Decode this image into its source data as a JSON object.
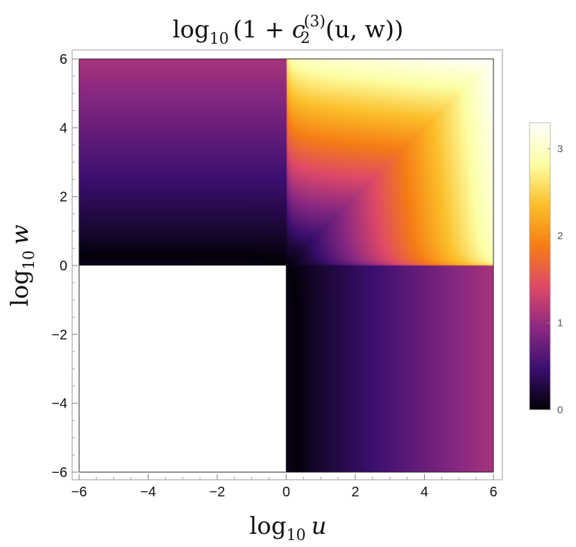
{
  "chart_data": {
    "type": "heatmap",
    "title_parts": {
      "log": "log",
      "log_sub": "10",
      "open": "(1 + ",
      "c": "c",
      "c_sub": "2",
      "c_sup": "(3)",
      "args": "(u, w))"
    },
    "xlabel_parts": {
      "log": "log",
      "log_sub": "10",
      "var": "u"
    },
    "ylabel_parts": {
      "log": "log",
      "log_sub": "10",
      "var": "w"
    },
    "xlim": [
      -6,
      6
    ],
    "ylim": [
      -6,
      6
    ],
    "x_ticks": [
      "−6",
      "−4",
      "−2",
      "0",
      "2",
      "4",
      "6"
    ],
    "y_ticks": [
      "−6",
      "−4",
      "−2",
      "0",
      "2",
      "4",
      "6"
    ],
    "x_tick_values": [
      -6,
      -4,
      -2,
      0,
      2,
      4,
      6
    ],
    "y_tick_values": [
      -6,
      -4,
      -2,
      0,
      2,
      4,
      6
    ],
    "colorbar": {
      "range": [
        0,
        3.3
      ],
      "ticks": [
        "0",
        "1",
        "2",
        "3"
      ],
      "tick_values": [
        0,
        1,
        2,
        3
      ],
      "colormap": [
        "#000004",
        "#3b0f70",
        "#8c2981",
        "#de4968",
        "#f57d15",
        "#fbbf2a",
        "#fcffa4",
        "#ffffff"
      ]
    },
    "undefined_region": "u < 1 and w < 1",
    "grid": false
  }
}
